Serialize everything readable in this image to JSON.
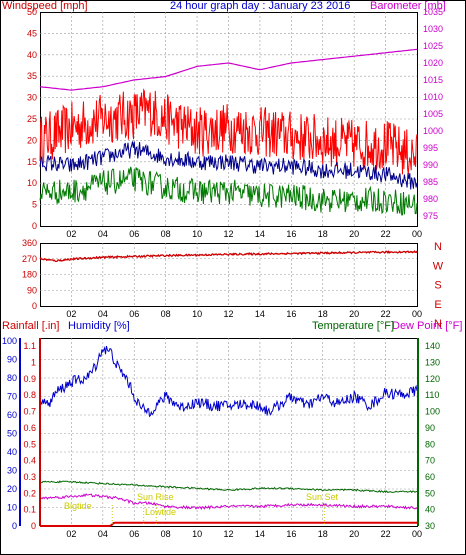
{
  "colors": {
    "wind": "#ff0000",
    "gust": "#ff0000",
    "avg": "#00008b",
    "low": "#007a00",
    "baro": "#cc00cc",
    "dir": "#cc0000",
    "rain": "#dd0000",
    "hum": "#0000cc",
    "temp": "#006600",
    "dew": "#cc00cc",
    "grid": "#9a9a9a",
    "sun": "#cccc00"
  },
  "header": {
    "windspeed_label": "Windspeed [mph]",
    "title": "24 hour graph day : January 23 2016",
    "barometer_label": "Barometer [mb]"
  },
  "bottom_header": {
    "rainfall_label": "Rainfall [.in]",
    "humidity_label": "Humidity [%]",
    "temperature_label": "Temperature [°F]",
    "dewpoint_label": "Dew Point [°F]"
  },
  "annotations": {
    "bigtide": "Bigtide",
    "sunrise": "Sun Rise",
    "lowtide": "Lowtide",
    "sunset": "Sun Set"
  },
  "chart_data": [
    {
      "type": "line",
      "name": "wind",
      "x_ticks": [
        "02",
        "04",
        "06",
        "08",
        "10",
        "12",
        "14",
        "16",
        "18",
        "20",
        "22",
        "00"
      ],
      "y_left": {
        "ticks": [
          0,
          5,
          10,
          15,
          20,
          25,
          30,
          35,
          40,
          45,
          50
        ],
        "ylim": [
          0,
          50
        ]
      },
      "y_right": {
        "ticks": [
          975,
          980,
          985,
          990,
          995,
          1000,
          1005,
          1010,
          1015,
          1020,
          1025,
          1030,
          1035
        ],
        "ylim": [
          972,
          1035
        ]
      },
      "series": [
        {
          "name": "Windspeed",
          "axis": "left",
          "x_hours": [
            0,
            2,
            4,
            6,
            7,
            8,
            10,
            12,
            14,
            16,
            18,
            20,
            22,
            24
          ],
          "y": [
            20,
            23,
            25,
            26,
            27,
            25,
            22,
            23,
            22,
            21,
            20,
            19,
            19,
            16
          ],
          "spread": 6
        },
        {
          "name": "",
          "axis": "left",
          "x_hours": [
            0,
            2,
            4,
            6,
            7,
            8,
            10,
            12,
            14,
            16,
            18,
            20,
            22,
            24
          ],
          "y": [
            15,
            14,
            16,
            18,
            17,
            16,
            15,
            15,
            14,
            14,
            13,
            13,
            12,
            10
          ],
          "spread": 2
        },
        {
          "name": "",
          "axis": "left",
          "x_hours": [
            0,
            2,
            4,
            6,
            7,
            8,
            10,
            12,
            14,
            16,
            18,
            20,
            22,
            24
          ],
          "y": [
            8,
            8,
            10,
            11,
            10,
            9,
            8,
            8,
            7,
            7,
            6,
            6,
            6,
            5
          ],
          "spread": 3
        },
        {
          "name": "Barometer",
          "axis": "right",
          "x_hours": [
            0,
            2,
            4,
            6,
            8,
            10,
            12,
            14,
            16,
            18,
            20,
            22,
            24
          ],
          "y": [
            1013,
            1012,
            1013,
            1015,
            1016,
            1019,
            1020,
            1018,
            1020,
            1021,
            1022,
            1023,
            1024
          ],
          "spread": 0
        }
      ]
    },
    {
      "type": "line",
      "name": "direction",
      "x_ticks": [
        "02",
        "04",
        "06",
        "08",
        "10",
        "12",
        "14",
        "16",
        "18",
        "20",
        "22",
        "00"
      ],
      "y_left": {
        "ticks": [
          0,
          90,
          180,
          270,
          360
        ],
        "ylim": [
          0,
          360
        ]
      },
      "y_right_labels": [
        "N",
        "W",
        "S",
        "E",
        "N"
      ],
      "series": [
        {
          "name": "",
          "x_hours": [
            0,
            1,
            2,
            4,
            8,
            12,
            16,
            20,
            24
          ],
          "y": [
            270,
            258,
            268,
            278,
            288,
            295,
            300,
            305,
            310
          ],
          "spread": 5
        }
      ]
    },
    {
      "type": "line",
      "name": "climate",
      "x_ticks": [
        "02",
        "04",
        "06",
        "08",
        "10",
        "12",
        "14",
        "16",
        "18",
        "20",
        "22",
        "00"
      ],
      "y_humidity": {
        "ticks": [
          0,
          10,
          20,
          30,
          40,
          50,
          60,
          70,
          80,
          90,
          100
        ],
        "ylim": [
          0,
          100
        ]
      },
      "y_rain": {
        "ticks": [
          0,
          0.1,
          0.2,
          0.3,
          0.4,
          0.5,
          0.6,
          0.7,
          0.8,
          0.9,
          1,
          1.1
        ],
        "ylim": [
          0,
          1.15
        ]
      },
      "y_temp": {
        "ticks": [
          30,
          40,
          50,
          60,
          70,
          80,
          90,
          100,
          110,
          120,
          130,
          140
        ],
        "ylim": [
          30,
          145
        ]
      },
      "series": [
        {
          "name": "Humidity",
          "axis": "humidity",
          "x_hours": [
            0,
            0.5,
            1,
            2,
            3,
            3.5,
            4,
            4.5,
            5,
            5.5,
            6,
            6.5,
            7,
            8,
            9,
            10,
            11,
            12,
            13,
            14,
            14.5,
            15,
            16,
            17,
            18,
            19,
            20,
            21,
            22,
            23,
            24
          ],
          "y": [
            70,
            65,
            72,
            78,
            80,
            86,
            96,
            94,
            85,
            80,
            70,
            63,
            62,
            70,
            64,
            67,
            65,
            65,
            66,
            65,
            62,
            64,
            70,
            65,
            70,
            66,
            70,
            65,
            72,
            71,
            73
          ],
          "spread": 3
        },
        {
          "name": "Temperature",
          "axis": "temp",
          "x_hours": [
            0,
            2,
            4,
            6,
            8,
            10,
            12,
            14,
            16,
            18,
            20,
            22,
            24
          ],
          "y": [
            57,
            57,
            56,
            55,
            54,
            53,
            52,
            53,
            53,
            52,
            52,
            51,
            51
          ],
          "spread": 0.5
        },
        {
          "name": "Dew Point",
          "axis": "temp",
          "x_hours": [
            0,
            2,
            3,
            4,
            5,
            6,
            7,
            8,
            10,
            12,
            14,
            16,
            18,
            20,
            22,
            24
          ],
          "y": [
            47,
            48,
            49,
            48,
            47,
            44,
            44,
            42,
            41,
            42,
            42,
            43,
            43,
            42,
            42,
            41
          ],
          "spread": 0.8
        },
        {
          "name": "Rainfall",
          "axis": "rain",
          "x_hours": [
            0,
            4.5,
            4.7,
            24
          ],
          "y": [
            0,
            0,
            0.02,
            0.02
          ],
          "spread": 0
        }
      ]
    }
  ]
}
